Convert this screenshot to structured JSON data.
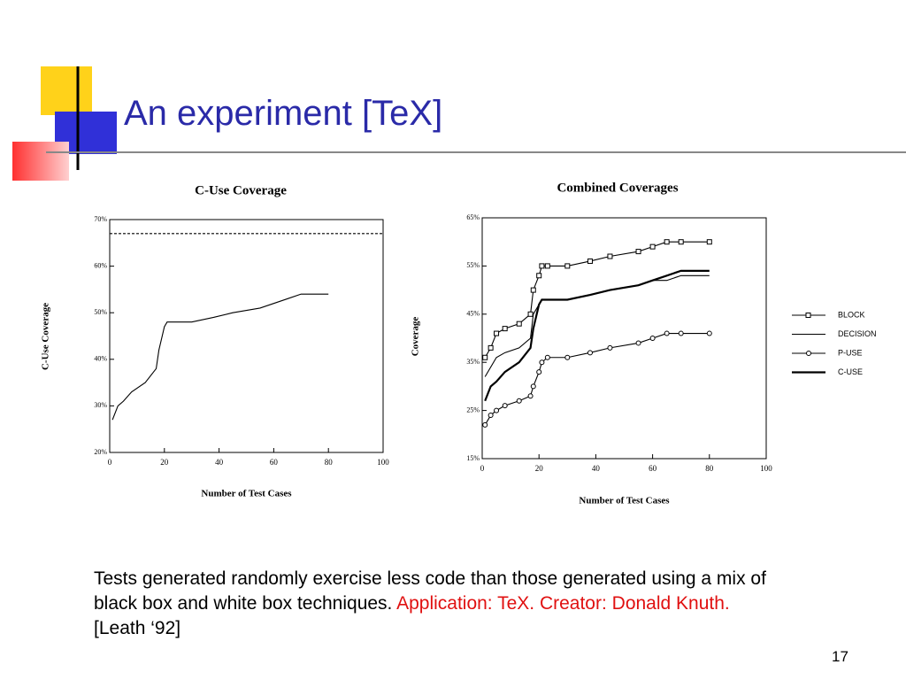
{
  "slide": {
    "title": "An experiment [TeX]",
    "caption": {
      "part1": "Tests generated randomly exercise less code than those generated using a mix of black box and white box techniques.",
      "part2": "Application: TeX. Creator: Donald Knuth.",
      "part3": "[Leath ‘92]"
    },
    "page_number": "17"
  },
  "chart_data": [
    {
      "type": "line",
      "title": "C-Use Coverage",
      "x_label": "Number of Test Cases",
      "y_label": "C-Use  Coverage",
      "xlim": [
        0,
        100
      ],
      "xticks": [
        0,
        20,
        40,
        60,
        80,
        100
      ],
      "ylim": [
        20,
        70
      ],
      "yticks": [
        {
          "value": 20,
          "label": "20%"
        },
        {
          "value": 30,
          "label": "30%"
        },
        {
          "value": 40,
          "label": "40%"
        },
        {
          "value": 50,
          "label": "50%"
        },
        {
          "value": 60,
          "label": "60%"
        },
        {
          "value": 70,
          "label": "70%"
        }
      ],
      "series": [
        {
          "color": "#000000",
          "dash": true,
          "x": [
            0,
            100
          ],
          "values": [
            67,
            67
          ]
        },
        {
          "color": "#000000",
          "x": [
            1,
            3,
            5,
            8,
            13,
            17,
            18,
            20,
            21,
            23,
            30,
            38,
            45,
            55,
            60,
            65,
            70,
            80
          ],
          "values": [
            27,
            30,
            31,
            33,
            35,
            38,
            42,
            47,
            48,
            48,
            48,
            49,
            50,
            51,
            52,
            53,
            54,
            54
          ]
        }
      ]
    },
    {
      "type": "line",
      "title": "Combined Coverages",
      "x_label": "Number of Test Cases",
      "y_label": "Coverage",
      "xlim": [
        0,
        100
      ],
      "xticks": [
        0,
        20,
        40,
        60,
        80,
        100
      ],
      "ylim": [
        15,
        65
      ],
      "yticks": [
        {
          "value": 15,
          "label": "15%"
        },
        {
          "value": 25,
          "label": "25%"
        },
        {
          "value": 35,
          "label": "35%"
        },
        {
          "value": 45,
          "label": "45%"
        },
        {
          "value": 55,
          "label": "55%"
        },
        {
          "value": 65,
          "label": "65%"
        }
      ],
      "x": [
        1,
        3,
        5,
        8,
        13,
        17,
        18,
        20,
        21,
        23,
        30,
        38,
        45,
        55,
        60,
        65,
        70,
        80
      ],
      "series": [
        {
          "name": "BLOCK",
          "color": "#000000",
          "marker": "square",
          "values": [
            36,
            38,
            41,
            42,
            43,
            45,
            50,
            53,
            55,
            55,
            55,
            56,
            57,
            58,
            59,
            60,
            60,
            60
          ]
        },
        {
          "name": "DECISION",
          "color": "#000000",
          "values": [
            32,
            34,
            36,
            37,
            38,
            40,
            45,
            47,
            48,
            48,
            48,
            49,
            50,
            51,
            52,
            52,
            53,
            53
          ]
        },
        {
          "name": "P-USE",
          "color": "#000000",
          "marker": "circle",
          "values": [
            22,
            24,
            25,
            26,
            27,
            28,
            30,
            33,
            35,
            36,
            36,
            37,
            38,
            39,
            40,
            41,
            41,
            41
          ]
        },
        {
          "name": "C-USE",
          "color": "#000000",
          "bold": true,
          "values": [
            27,
            30,
            31,
            33,
            35,
            38,
            42,
            47,
            48,
            48,
            48,
            49,
            50,
            51,
            52,
            53,
            54,
            54
          ]
        }
      ]
    }
  ]
}
